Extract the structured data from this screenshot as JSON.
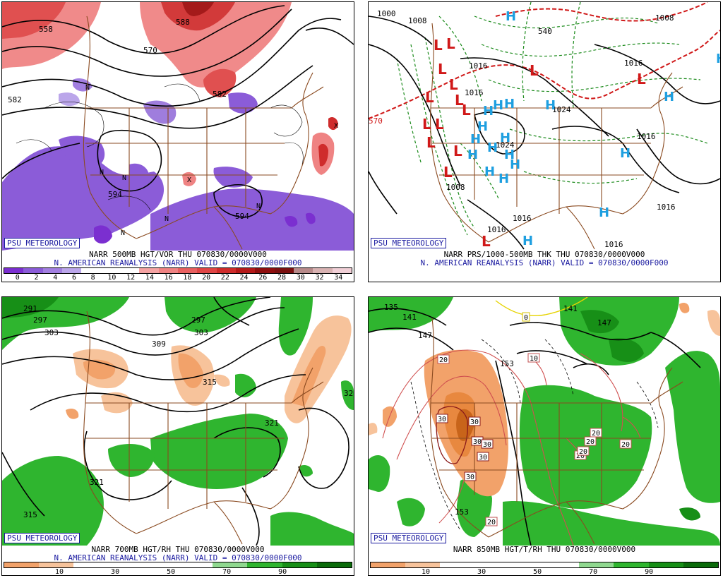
{
  "credit": "PSU METEOROLOGY",
  "panels": {
    "p1": {
      "title": "NARR 500MB HGT/VOR THU 070830/0000V000",
      "subtitle": "N. AMERICAN REANALYSIS (NARR) VALID = 070830/0000F000",
      "contour_labels": [
        "558",
        "570",
        "582",
        "594",
        "594",
        "588",
        "582"
      ],
      "center_marks": [
        "N",
        "N",
        "N",
        "N",
        "N",
        "N",
        "X",
        "X"
      ],
      "scale_ticks": [
        "0",
        "2",
        "4",
        "6",
        "8",
        "10",
        "12",
        "14",
        "16",
        "18",
        "20",
        "22",
        "24",
        "26",
        "28",
        "30",
        "32",
        "34"
      ],
      "scale_colors": [
        "#7b2fd0",
        "#8b5cd8",
        "#a27fe0",
        "#bba6ea",
        "#ffffff",
        "#ffffff",
        "#ffffff",
        "#f5a3a3",
        "#ef8383",
        "#e86060",
        "#e04545",
        "#cf2c2c",
        "#b41919",
        "#8f0f0f",
        "#7a1010",
        "#b78a8a",
        "#d8b2b2",
        "#f0cfd6"
      ]
    },
    "p2": {
      "title": "NARR PRS/1000-500MB THK THU 070830/0000V000",
      "subtitle": "N. AMERICAN REANALYSIS (NARR) VALID = 070830/0000F000",
      "isobar_labels": [
        "1000",
        "1008",
        "1008",
        "1016",
        "1016",
        "1016",
        "1024",
        "1024",
        "1016",
        "1016",
        "1016",
        "1016",
        "1008",
        "1016",
        "540",
        "570"
      ],
      "lows": [
        "L",
        "L",
        "L",
        "L",
        "L",
        "L",
        "L",
        "L",
        "L",
        "L",
        "L",
        "L",
        "L",
        "L",
        "L"
      ],
      "highs": [
        "H",
        "H",
        "H",
        "H",
        "H",
        "H",
        "H",
        "H",
        "H",
        "H",
        "H",
        "H",
        "H",
        "H",
        "H",
        "H",
        "H",
        "H",
        "H"
      ]
    },
    "p3": {
      "title": "NARR 700MB HGT/RH THU 070830/0000V000",
      "subtitle": "N. AMERICAN REANALYSIS (NARR) VALID = 070830/0000F000",
      "contour_labels": [
        "291",
        "297",
        "303",
        "297",
        "309",
        "303",
        "315",
        "321",
        "321",
        "315",
        "32"
      ],
      "scale_ticks": [
        "10",
        "30",
        "50",
        "70",
        "90"
      ],
      "scale_colors": [
        "#f2a26a",
        "#f7c39b",
        "#ffffff",
        "#ffffff",
        "#ffffff",
        "#ffffff",
        "#8fd88f",
        "#2fb52f",
        "#178f17",
        "#0b6b0b"
      ]
    },
    "p4": {
      "title": "NARR 850MB HGT/T/RH THU 070830/0000V000",
      "contour_labels": [
        "135",
        "141",
        "147",
        "141",
        "147",
        "153",
        "153"
      ],
      "temp_labels": [
        "20",
        "10",
        "0",
        "30",
        "30",
        "30",
        "30",
        "30",
        "30",
        "20",
        "20",
        "20",
        "20",
        "20",
        "20"
      ],
      "scale_ticks": [
        "10",
        "30",
        "50",
        "70",
        "90"
      ],
      "scale_colors": [
        "#f2a26a",
        "#f7c39b",
        "#ffffff",
        "#ffffff",
        "#ffffff",
        "#ffffff",
        "#8fd88f",
        "#2fb52f",
        "#178f17",
        "#0b6b0b"
      ]
    }
  }
}
